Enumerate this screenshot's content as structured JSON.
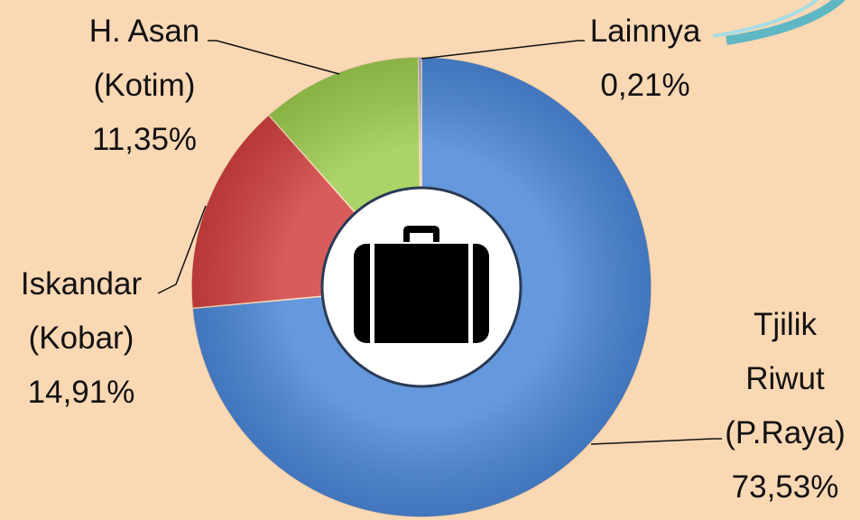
{
  "chart_data": {
    "type": "donut",
    "categories": [
      "Tjilik Riwut (P.Raya)",
      "Iskandar (Kobar)",
      "H. Asan (Kotim)",
      "Lainnya"
    ],
    "values": [
      73.53,
      14.91,
      11.35,
      0.21
    ],
    "value_labels": [
      "73,53%",
      "14,91%",
      "11,35%",
      "0,21%"
    ],
    "colors": [
      "#4a86d6",
      "#d0403e",
      "#9ccb4e",
      "#7fa6d8"
    ]
  }
}
